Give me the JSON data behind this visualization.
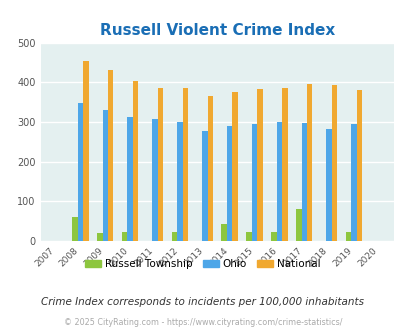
{
  "title": "Russell Violent Crime Index",
  "years": [
    2007,
    2008,
    2009,
    2010,
    2011,
    2012,
    2013,
    2014,
    2015,
    2016,
    2017,
    2018,
    2019,
    2020
  ],
  "russell": [
    0,
    60,
    20,
    22,
    0,
    22,
    0,
    43,
    22,
    22,
    80,
    0,
    22,
    0
  ],
  "ohio": [
    0,
    347,
    330,
    314,
    308,
    300,
    278,
    290,
    295,
    300,
    298,
    282,
    295,
    0
  ],
  "national": [
    0,
    455,
    432,
    405,
    387,
    387,
    366,
    376,
    383,
    386,
    397,
    394,
    380,
    0
  ],
  "russell_color": "#8dc63f",
  "ohio_color": "#4da6e8",
  "national_color": "#f0a830",
  "bg_color": "#e4f0f0",
  "ylim": [
    0,
    500
  ],
  "yticks": [
    0,
    100,
    200,
    300,
    400,
    500
  ],
  "subtitle": "Crime Index corresponds to incidents per 100,000 inhabitants",
  "footer": "© 2025 CityRating.com - https://www.cityrating.com/crime-statistics/",
  "legend_labels": [
    "Russell Township",
    "Ohio",
    "National"
  ],
  "bar_width": 0.22,
  "fig_width": 4.06,
  "fig_height": 3.3,
  "dpi": 100
}
